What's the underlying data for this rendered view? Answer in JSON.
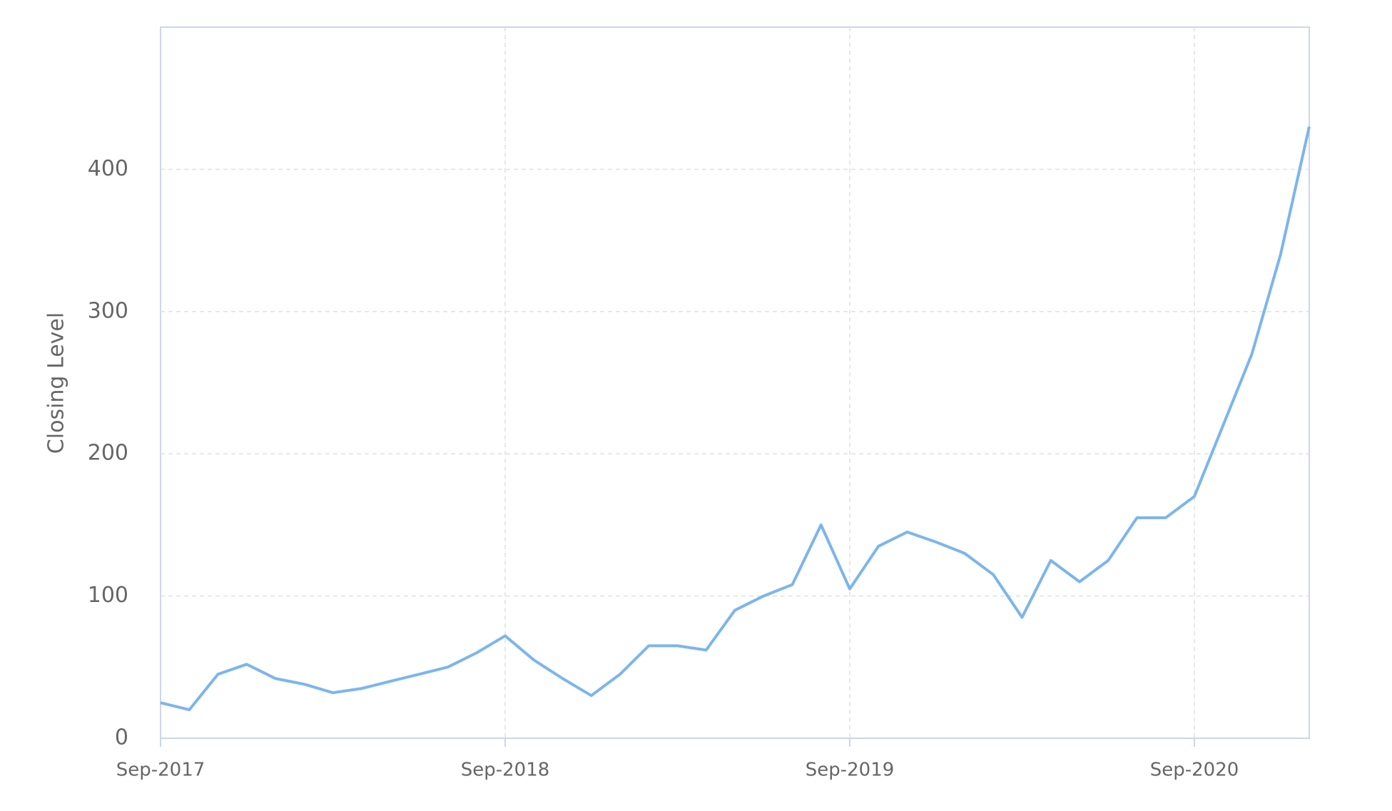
{
  "chart_data": {
    "type": "line",
    "y_label": "Closing Level",
    "x": [
      "2017-09",
      "2017-10",
      "2017-11",
      "2017-12",
      "2018-01",
      "2018-02",
      "2018-03",
      "2018-04",
      "2018-05",
      "2018-06",
      "2018-07",
      "2018-08",
      "2018-09",
      "2018-10",
      "2018-11",
      "2018-12",
      "2019-01",
      "2019-02",
      "2019-03",
      "2019-04",
      "2019-05",
      "2019-06",
      "2019-07",
      "2019-08",
      "2019-09",
      "2019-10",
      "2019-11",
      "2019-12",
      "2020-01",
      "2020-02",
      "2020-03",
      "2020-04",
      "2020-05",
      "2020-06",
      "2020-07",
      "2020-08",
      "2020-09",
      "2020-10",
      "2020-11",
      "2020-12",
      "2021-01"
    ],
    "series": [
      {
        "name": "Closing Level",
        "color": "#7cb5ec",
        "values": [
          25,
          20,
          45,
          52,
          42,
          38,
          32,
          35,
          40,
          45,
          50,
          60,
          72,
          55,
          42,
          30,
          45,
          65,
          65,
          62,
          90,
          100,
          108,
          150,
          105,
          135,
          145,
          138,
          130,
          115,
          85,
          125,
          110,
          125,
          155,
          155,
          170,
          220,
          270,
          340,
          430
        ]
      }
    ],
    "xlim": [
      "2017-09",
      "2021-01"
    ],
    "xticks": [
      {
        "value": "2017-09",
        "label": "Sep-2017"
      },
      {
        "value": "2018-09",
        "label": "Sep-2018"
      },
      {
        "value": "2019-09",
        "label": "Sep-2019"
      },
      {
        "value": "2020-09",
        "label": "Sep-2020"
      }
    ],
    "ylim": [
      0,
      500
    ],
    "yticks": [
      0,
      100,
      200,
      300,
      400
    ],
    "grid": true
  }
}
